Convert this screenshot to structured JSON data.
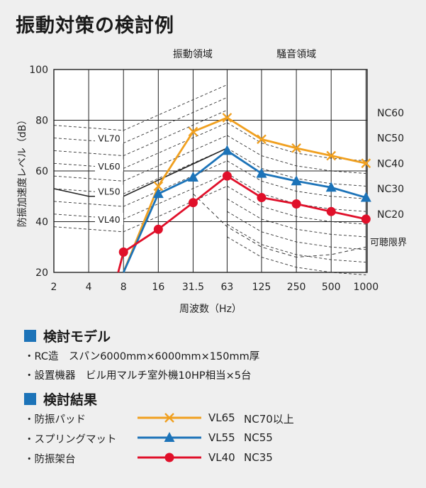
{
  "title": "振動対策の検討例",
  "chart_data": {
    "type": "line",
    "xlabel": "周波数（Hz）",
    "ylabel": "防振加速度レベル（dB）",
    "x_ticks": [
      "2",
      "4",
      "8",
      "16",
      "31.5",
      "63",
      "125",
      "250",
      "500",
      "1000"
    ],
    "y_ticks": [
      20,
      40,
      60,
      80,
      100
    ],
    "ylim": [
      20,
      100
    ],
    "x_scale": "log2 (octave)",
    "grid": true,
    "region_labels": [
      "振動領域",
      "騒音領域"
    ],
    "vl_labels": [
      "VL70",
      "VL60",
      "VL50",
      "VL40"
    ],
    "nc_labels": [
      "NC60",
      "NC50",
      "NC40",
      "NC30",
      "NC20"
    ],
    "threshold_label": "可聴限界",
    "vl_base_curve": [
      [
        2,
        53
      ],
      [
        4,
        50
      ],
      [
        8,
        50
      ],
      [
        63,
        69
      ]
    ],
    "audible_threshold_curve": [
      [
        31.5,
        51
      ],
      [
        63,
        38
      ],
      [
        125,
        30
      ],
      [
        250,
        26
      ],
      [
        500,
        27
      ],
      [
        1000,
        30
      ]
    ],
    "series": [
      {
        "name": "防振パッド",
        "marker": "x",
        "color": "#f0a020",
        "points": [
          [
            8,
            20
          ],
          [
            16,
            54
          ],
          [
            31.5,
            75.5
          ],
          [
            63,
            81
          ],
          [
            125,
            72.5
          ],
          [
            250,
            69
          ],
          [
            500,
            66
          ],
          [
            1000,
            63
          ]
        ]
      },
      {
        "name": "スプリングマット",
        "marker": "triangle",
        "color": "#1c73b8",
        "points": [
          [
            8,
            20
          ],
          [
            16,
            51
          ],
          [
            31.5,
            57.5
          ],
          [
            63,
            68
          ],
          [
            125,
            59
          ],
          [
            250,
            56
          ],
          [
            500,
            53.5
          ],
          [
            1000,
            49.5
          ]
        ]
      },
      {
        "name": "防振架台",
        "marker": "circle",
        "color": "#e0102a",
        "points": [
          [
            7.2,
            20
          ],
          [
            8,
            28
          ],
          [
            16,
            37
          ],
          [
            31.5,
            47.5
          ],
          [
            63,
            58
          ],
          [
            125,
            49.5
          ],
          [
            250,
            47
          ],
          [
            500,
            44
          ],
          [
            1000,
            41
          ]
        ]
      }
    ]
  },
  "model": {
    "heading": "検討モデル",
    "lines": [
      "・RC造　スパン6000mm×6000mm×150mm厚",
      "・設置機器　ビル用マルチ室外機10HP相当×5台"
    ]
  },
  "results": {
    "heading": "検討結果",
    "rows": [
      {
        "label": "・防振パッド",
        "vl": "VL65",
        "nc": "NC70以上",
        "color": "#f0a020",
        "marker": "x"
      },
      {
        "label": "・スプリングマット",
        "vl": "VL55",
        "nc": "NC55",
        "color": "#1c73b8",
        "marker": "triangle"
      },
      {
        "label": "・防振架台",
        "vl": "VL40",
        "nc": "NC35",
        "color": "#e0102a",
        "marker": "circle"
      }
    ]
  }
}
